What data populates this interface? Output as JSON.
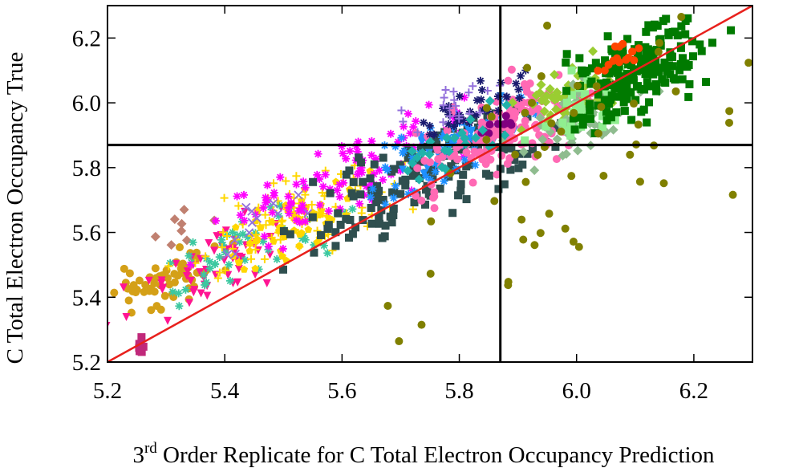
{
  "chart_data": {
    "type": "scatter",
    "title": "",
    "xlabel_sup": "rd",
    "xlabel_lead": "3",
    "xlabel_rest": " Order Replicate for C Total Electron Occupancy Prediction",
    "xlabel": "3rd Order Replicate for C Total Electron Occupancy Prediction",
    "ylabel": "C Total Electron Occupancy True",
    "xlim": [
      5.2,
      6.3
    ],
    "ylim": [
      5.2,
      6.3
    ],
    "xticks": [
      "5.2",
      "5.4",
      "5.6",
      "5.8",
      "6.0",
      "6.2"
    ],
    "yticks": [
      "5.2",
      "5.4",
      "5.6",
      "5.8",
      "6.0",
      "6.2"
    ],
    "grid": false,
    "legend": "none",
    "reference_lines": {
      "diagonal": {
        "from": [
          5.2,
          5.2
        ],
        "to": [
          6.3,
          6.3
        ],
        "color": "#e8201c"
      },
      "vertical_x": 5.87,
      "horizontal_y": 5.87,
      "color": "#000000"
    },
    "series": [
      {
        "marker": "circle",
        "color": "#d4a017",
        "center": [
          5.3,
          5.45
        ],
        "spread": [
          0.05,
          0.04
        ],
        "n": 60
      },
      {
        "marker": "diamond",
        "color": "#c08070",
        "center": [
          5.34,
          5.62
        ],
        "spread": [
          0.03,
          0.03
        ],
        "n": 8
      },
      {
        "marker": "square",
        "color": "#c0287a",
        "center": [
          5.255,
          5.25
        ],
        "spread": [
          0.003,
          0.02
        ],
        "n": 6
      },
      {
        "marker": "triangle-down",
        "color": "#ff1493",
        "center": [
          5.38,
          5.5
        ],
        "spread": [
          0.07,
          0.05
        ],
        "n": 60
      },
      {
        "marker": "star",
        "color": "#3cc8a0",
        "center": [
          5.45,
          5.55
        ],
        "spread": [
          0.08,
          0.05
        ],
        "n": 50
      },
      {
        "marker": "plus",
        "color": "#ffd700",
        "center": [
          5.53,
          5.65
        ],
        "spread": [
          0.09,
          0.06
        ],
        "n": 90
      },
      {
        "marker": "pentagon",
        "color": "#ffd700",
        "center": [
          5.5,
          5.6
        ],
        "spread": [
          0.06,
          0.05
        ],
        "n": 50
      },
      {
        "marker": "star",
        "color": "#ff00ff",
        "center": [
          5.62,
          5.78
        ],
        "spread": [
          0.12,
          0.06
        ],
        "n": 110
      },
      {
        "marker": "x",
        "color": "#9370db",
        "center": [
          5.45,
          5.63
        ],
        "spread": [
          0.04,
          0.04
        ],
        "n": 12
      },
      {
        "marker": "square",
        "color": "#2f4f4f",
        "center": [
          5.75,
          5.78
        ],
        "spread": [
          0.1,
          0.08
        ],
        "n": 150
      },
      {
        "marker": "star",
        "color": "#1e90ff",
        "center": [
          5.78,
          5.85
        ],
        "spread": [
          0.08,
          0.06
        ],
        "n": 50
      },
      {
        "marker": "triangle-down",
        "color": "#1e90ff",
        "center": [
          5.8,
          5.9
        ],
        "spread": [
          0.05,
          0.04
        ],
        "n": 30
      },
      {
        "marker": "circle",
        "color": "#ff69b4",
        "center": [
          5.88,
          5.92
        ],
        "spread": [
          0.07,
          0.06
        ],
        "n": 160
      },
      {
        "marker": "star",
        "color": "#1a1a6e",
        "center": [
          5.83,
          6.0
        ],
        "spread": [
          0.05,
          0.03
        ],
        "n": 35
      },
      {
        "marker": "circle",
        "color": "#800080",
        "center": [
          5.86,
          5.93
        ],
        "spread": [
          0.02,
          0.01
        ],
        "n": 10
      },
      {
        "marker": "plus",
        "color": "#9370db",
        "center": [
          5.8,
          6.0
        ],
        "spread": [
          0.04,
          0.03
        ],
        "n": 20
      },
      {
        "marker": "diamond",
        "color": "#9acd32",
        "center": [
          5.98,
          6.0
        ],
        "spread": [
          0.05,
          0.05
        ],
        "n": 60
      },
      {
        "marker": "diamond",
        "color": "#8fbc8f",
        "center": [
          6.0,
          5.95
        ],
        "spread": [
          0.05,
          0.06
        ],
        "n": 60
      },
      {
        "marker": "square",
        "color": "#90ee90",
        "center": [
          6.02,
          5.98
        ],
        "spread": [
          0.04,
          0.05
        ],
        "n": 30
      },
      {
        "marker": "square",
        "color": "#007a00",
        "center": [
          6.1,
          6.1
        ],
        "spread": [
          0.06,
          0.07
        ],
        "n": 190
      },
      {
        "marker": "circle",
        "color": "#ff4500",
        "center": [
          6.08,
          6.15
        ],
        "spread": [
          0.02,
          0.02
        ],
        "n": 14
      },
      {
        "marker": "circle",
        "color": "#808000",
        "center": [
          5.98,
          5.85
        ],
        "spread": [
          0.17,
          0.2
        ],
        "n": 55
      },
      {
        "marker": "diamond",
        "color": "#20b2aa",
        "center": [
          5.8,
          5.88
        ],
        "spread": [
          0.05,
          0.04
        ],
        "n": 25
      }
    ]
  }
}
